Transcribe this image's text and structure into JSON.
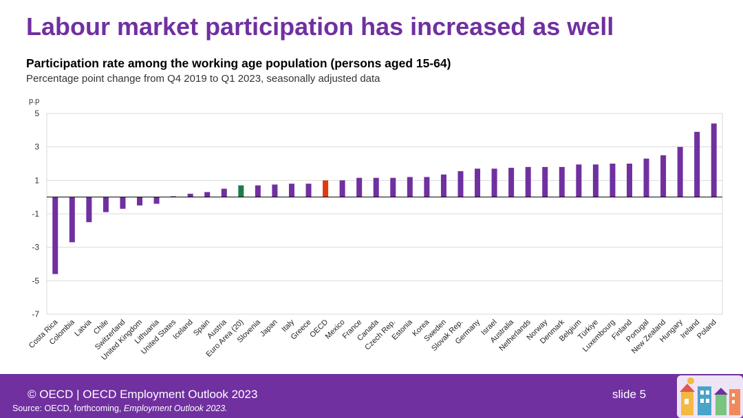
{
  "slide": {
    "title": "Labour market participation has increased as well",
    "footer_text": "© OECD | OECD Employment Outlook 2023",
    "slide_label": "slide 5",
    "source_prefix": "Source: OECD, forthcoming, ",
    "source_publication": "Employment Outlook 2023.",
    "footer_art_icon": "town-illustration-icon"
  },
  "colors": {
    "bar": "#7030a0",
    "euro_area": "#1e7a4c",
    "oecd": "#e03a12",
    "title": "#7030a0",
    "footer": "#7030a0"
  },
  "chart_data": {
    "type": "bar",
    "title": "Participation rate among the working age population (persons aged 15-64)",
    "subtitle": "Percentage point change from Q4 2019 to Q1 2023, seasonally adjusted data",
    "ylabel": "p.p",
    "xlabel": "",
    "ylim": [
      -7,
      5
    ],
    "yticks": [
      5,
      3,
      1,
      -1,
      -3,
      -5,
      -7
    ],
    "grid": true,
    "categories": [
      "Costa Rica",
      "Colombia",
      "Latvia",
      "Chile",
      "Switzerland",
      "United Kingdom",
      "Lithuania",
      "United States",
      "Iceland",
      "Spain",
      "Austria",
      "Euro Area (20)",
      "Slovenia",
      "Japan",
      "Italy",
      "Greece",
      "OECD",
      "Mexico",
      "France",
      "Canada",
      "Czech Rep.",
      "Estonia",
      "Korea",
      "Sweden",
      "Slovak Rep.",
      "Germany",
      "Israel",
      "Australia",
      "Netherlands",
      "Norway",
      "Denmark",
      "Belgium",
      "Türkiye",
      "Luxembourg",
      "Finland",
      "Portugal",
      "New Zealand",
      "Hungary",
      "Ireland",
      "Poland"
    ],
    "values": [
      -4.6,
      -2.7,
      -1.5,
      -0.9,
      -0.7,
      -0.5,
      -0.4,
      0.05,
      0.2,
      0.3,
      0.5,
      0.7,
      0.7,
      0.75,
      0.8,
      0.8,
      1.0,
      1.0,
      1.15,
      1.15,
      1.15,
      1.2,
      1.2,
      1.35,
      1.55,
      1.7,
      1.7,
      1.75,
      1.8,
      1.8,
      1.8,
      1.95,
      1.95,
      2.0,
      2.0,
      2.3,
      2.5,
      3.0,
      3.9,
      4.4
    ],
    "highlights": {
      "Euro Area (20)": "euro_area",
      "OECD": "oecd"
    }
  }
}
